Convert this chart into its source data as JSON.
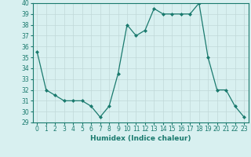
{
  "x": [
    0,
    1,
    2,
    3,
    4,
    5,
    6,
    7,
    8,
    9,
    10,
    11,
    12,
    13,
    14,
    15,
    16,
    17,
    18,
    19,
    20,
    21,
    22,
    23
  ],
  "y": [
    35.5,
    32,
    31.5,
    31,
    31,
    31,
    30.5,
    29.5,
    30.5,
    33.5,
    38,
    37,
    37.5,
    39.5,
    39,
    39,
    39,
    39,
    40,
    35,
    32,
    32,
    30.5,
    29.5
  ],
  "line_color": "#1a7a6e",
  "marker": "D",
  "marker_size": 2,
  "bg_color": "#d8f0f0",
  "grid_color": "#c0d8d8",
  "xlabel": "Humidex (Indice chaleur)",
  "ylim": [
    29,
    40
  ],
  "xlim": [
    -0.5,
    23.5
  ],
  "yticks": [
    29,
    30,
    31,
    32,
    33,
    34,
    35,
    36,
    37,
    38,
    39,
    40
  ],
  "xticks": [
    0,
    1,
    2,
    3,
    4,
    5,
    6,
    7,
    8,
    9,
    10,
    11,
    12,
    13,
    14,
    15,
    16,
    17,
    18,
    19,
    20,
    21,
    22,
    23
  ],
  "tick_fontsize": 5.5,
  "label_fontsize": 6.5
}
